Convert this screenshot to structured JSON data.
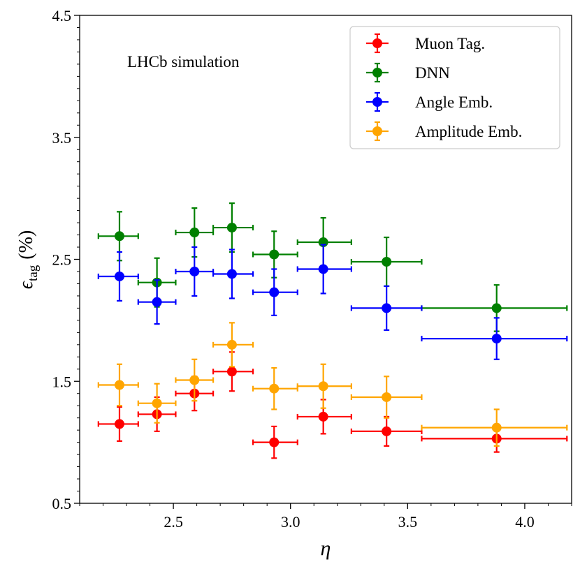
{
  "chart_data": {
    "type": "scatter",
    "title": "",
    "annotation": "LHCb simulation",
    "xlabel": "η",
    "ylabel_main": "ϵ",
    "ylabel_sub": "tag",
    "ylabel_unit": "(%)",
    "xlim": [
      2.1,
      4.2
    ],
    "ylim": [
      0.5,
      4.5
    ],
    "xticks": [
      2.5,
      3.0,
      3.5,
      4.0
    ],
    "xtick_labels": [
      "2.5",
      "3.0",
      "3.5",
      "4.0"
    ],
    "yticks": [
      0.5,
      1.5,
      2.5,
      3.5,
      4.5
    ],
    "ytick_labels": [
      "0.5",
      "1.5",
      "2.5",
      "3.5",
      "4.5"
    ],
    "grid": false,
    "legend_position": "top-right",
    "series": [
      {
        "name": "Muon Tag.",
        "color": "#ff0000",
        "points": [
          {
            "x": 2.27,
            "y": 1.15,
            "xerr": [
              2.18,
              2.35
            ],
            "yerr": 0.14
          },
          {
            "x": 2.43,
            "y": 1.23,
            "xerr": [
              2.35,
              2.51
            ],
            "yerr": 0.14
          },
          {
            "x": 2.59,
            "y": 1.4,
            "xerr": [
              2.51,
              2.67
            ],
            "yerr": 0.14
          },
          {
            "x": 2.75,
            "y": 1.58,
            "xerr": [
              2.67,
              2.84
            ],
            "yerr": 0.16
          },
          {
            "x": 2.93,
            "y": 1.0,
            "xerr": [
              2.84,
              3.03
            ],
            "yerr": 0.13
          },
          {
            "x": 3.14,
            "y": 1.21,
            "xerr": [
              3.03,
              3.26
            ],
            "yerr": 0.14
          },
          {
            "x": 3.41,
            "y": 1.09,
            "xerr": [
              3.26,
              3.56
            ],
            "yerr": 0.12
          },
          {
            "x": 3.88,
            "y": 1.03,
            "xerr": [
              3.56,
              4.18
            ],
            "yerr": 0.11
          }
        ]
      },
      {
        "name": "DNN",
        "color": "#008000",
        "points": [
          {
            "x": 2.27,
            "y": 2.69,
            "xerr": [
              2.18,
              2.35
            ],
            "yerr": 0.2
          },
          {
            "x": 2.43,
            "y": 2.31,
            "xerr": [
              2.35,
              2.51
            ],
            "yerr": 0.2
          },
          {
            "x": 2.59,
            "y": 2.72,
            "xerr": [
              2.51,
              2.67
            ],
            "yerr": 0.2
          },
          {
            "x": 2.75,
            "y": 2.76,
            "xerr": [
              2.67,
              2.84
            ],
            "yerr": 0.2
          },
          {
            "x": 2.93,
            "y": 2.54,
            "xerr": [
              2.84,
              3.03
            ],
            "yerr": 0.19
          },
          {
            "x": 3.14,
            "y": 2.64,
            "xerr": [
              3.03,
              3.26
            ],
            "yerr": 0.2
          },
          {
            "x": 3.41,
            "y": 2.48,
            "xerr": [
              3.26,
              3.56
            ],
            "yerr": 0.2
          },
          {
            "x": 3.88,
            "y": 2.1,
            "xerr": [
              3.56,
              4.18
            ],
            "yerr": 0.19
          }
        ]
      },
      {
        "name": "Angle Emb.",
        "color": "#0000ff",
        "points": [
          {
            "x": 2.27,
            "y": 2.36,
            "xerr": [
              2.18,
              2.35
            ],
            "yerr": 0.2
          },
          {
            "x": 2.43,
            "y": 2.15,
            "xerr": [
              2.35,
              2.51
            ],
            "yerr": 0.18
          },
          {
            "x": 2.59,
            "y": 2.4,
            "xerr": [
              2.51,
              2.67
            ],
            "yerr": 0.2
          },
          {
            "x": 2.75,
            "y": 2.38,
            "xerr": [
              2.67,
              2.84
            ],
            "yerr": 0.2
          },
          {
            "x": 2.93,
            "y": 2.23,
            "xerr": [
              2.84,
              3.03
            ],
            "yerr": 0.19
          },
          {
            "x": 3.14,
            "y": 2.42,
            "xerr": [
              3.03,
              3.26
            ],
            "yerr": 0.2
          },
          {
            "x": 3.41,
            "y": 2.1,
            "xerr": [
              3.26,
              3.56
            ],
            "yerr": 0.18
          },
          {
            "x": 3.88,
            "y": 1.85,
            "xerr": [
              3.56,
              4.18
            ],
            "yerr": 0.17
          }
        ]
      },
      {
        "name": "Amplitude Emb.",
        "color": "#ffa500",
        "points": [
          {
            "x": 2.27,
            "y": 1.47,
            "xerr": [
              2.18,
              2.35
            ],
            "yerr": 0.17
          },
          {
            "x": 2.43,
            "y": 1.32,
            "xerr": [
              2.35,
              2.51
            ],
            "yerr": 0.16
          },
          {
            "x": 2.59,
            "y": 1.51,
            "xerr": [
              2.51,
              2.67
            ],
            "yerr": 0.17
          },
          {
            "x": 2.75,
            "y": 1.8,
            "xerr": [
              2.67,
              2.84
            ],
            "yerr": 0.18
          },
          {
            "x": 2.93,
            "y": 1.44,
            "xerr": [
              2.84,
              3.03
            ],
            "yerr": 0.17
          },
          {
            "x": 3.14,
            "y": 1.46,
            "xerr": [
              3.03,
              3.26
            ],
            "yerr": 0.18
          },
          {
            "x": 3.41,
            "y": 1.37,
            "xerr": [
              3.26,
              3.56
            ],
            "yerr": 0.17
          },
          {
            "x": 3.88,
            "y": 1.12,
            "xerr": [
              3.56,
              4.18
            ],
            "yerr": 0.15
          }
        ]
      }
    ]
  }
}
